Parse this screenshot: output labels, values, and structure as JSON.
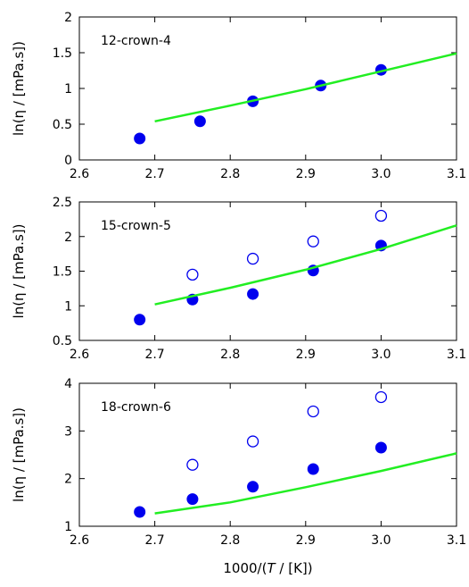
{
  "figure": {
    "xlabel_prefix": "1000/(",
    "xlabel_var": "T",
    "xlabel_suffix": " / [K])"
  },
  "colors": {
    "filled_marker": "#0000ee",
    "open_marker": "#0000ee",
    "fit_line": "#22ee22",
    "axes": "#000000"
  },
  "chart_data": [
    {
      "type": "scatter",
      "panel_label": "12-crown-4",
      "ylabel": "ln(η / [mPa.s])",
      "xlim": [
        2.6,
        3.1
      ],
      "ylim": [
        0,
        2
      ],
      "x_ticks": [
        "2.6",
        "2.7",
        "2.8",
        "2.9",
        "3.0",
        "3.1"
      ],
      "y_ticks": [
        "0",
        "0.5",
        "1",
        "1.5",
        "2"
      ],
      "series": [
        {
          "marker": "filled-circle",
          "x": [
            2.68,
            2.76,
            2.83,
            2.92,
            3.0
          ],
          "y": [
            0.3,
            0.54,
            0.82,
            1.04,
            1.26
          ]
        },
        {
          "marker": "line",
          "x": [
            2.7,
            2.8,
            2.9,
            3.0,
            3.1
          ],
          "y": [
            0.54,
            0.76,
            0.99,
            1.24,
            1.49
          ]
        }
      ]
    },
    {
      "type": "scatter",
      "panel_label": "15-crown-5",
      "ylabel": "ln(η / [mPa.s])",
      "xlim": [
        2.6,
        3.1
      ],
      "ylim": [
        0.5,
        2.5
      ],
      "x_ticks": [
        "2.6",
        "2.7",
        "2.8",
        "2.9",
        "3.0",
        "3.1"
      ],
      "y_ticks": [
        "0.5",
        "1",
        "1.5",
        "2",
        "2.5"
      ],
      "series": [
        {
          "marker": "filled-circle",
          "x": [
            2.68,
            2.75,
            2.83,
            2.91,
            3.0
          ],
          "y": [
            0.8,
            1.09,
            1.17,
            1.51,
            1.87
          ]
        },
        {
          "marker": "open-circle",
          "x": [
            2.75,
            2.83,
            2.91,
            3.0
          ],
          "y": [
            1.45,
            1.68,
            1.93,
            2.3
          ]
        },
        {
          "marker": "line",
          "x": [
            2.7,
            2.8,
            2.9,
            3.0,
            3.1
          ],
          "y": [
            1.02,
            1.26,
            1.52,
            1.82,
            2.16
          ]
        }
      ]
    },
    {
      "type": "scatter",
      "panel_label": "18-crown-6",
      "ylabel": "ln(η / [mPa.s])",
      "xlim": [
        2.6,
        3.1
      ],
      "ylim": [
        1,
        4
      ],
      "x_ticks": [
        "2.6",
        "2.7",
        "2.8",
        "2.9",
        "3.0",
        "3.1"
      ],
      "y_ticks": [
        "1",
        "2",
        "3",
        "4"
      ],
      "series": [
        {
          "marker": "filled-circle",
          "x": [
            2.68,
            2.75,
            2.83,
            2.91,
            3.0
          ],
          "y": [
            1.3,
            1.57,
            1.83,
            2.2,
            2.65
          ]
        },
        {
          "marker": "open-circle",
          "x": [
            2.75,
            2.83,
            2.91,
            3.0
          ],
          "y": [
            2.29,
            2.78,
            3.41,
            3.71
          ]
        },
        {
          "marker": "line",
          "x": [
            2.7,
            2.8,
            2.9,
            3.0,
            3.1
          ],
          "y": [
            1.27,
            1.5,
            1.82,
            2.16,
            2.53
          ]
        }
      ]
    }
  ]
}
